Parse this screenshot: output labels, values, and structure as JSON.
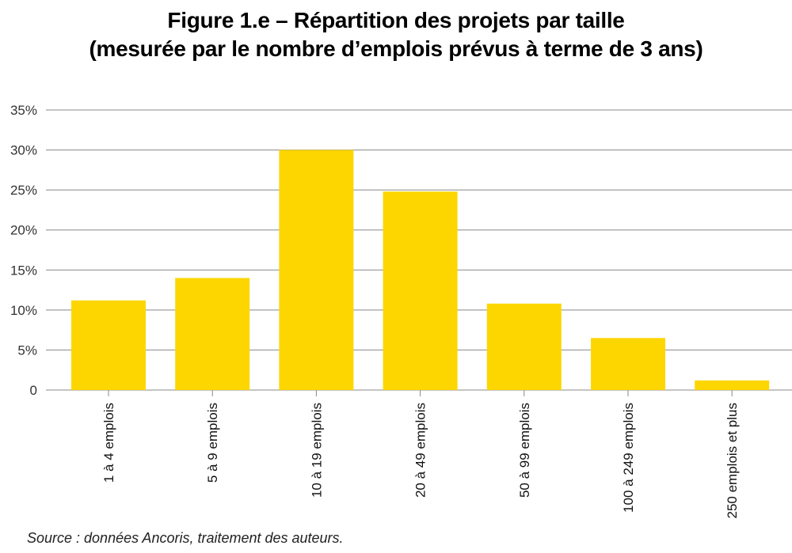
{
  "title_line1": "Figure 1.e – Répartition des projets par taille",
  "title_line2": "(mesurée par le nombre d’emplois prévus à terme de 3 ans)",
  "source": "Source : données Ancoris, traitement des auteurs.",
  "colors": {
    "bar": "#FDD600",
    "grid": "#888888",
    "text": "#333333"
  },
  "chart_data": {
    "type": "bar",
    "title": "Figure 1.e – Répartition des projets par taille (mesurée par le nombre d’emplois prévus à terme de 3 ans)",
    "categories": [
      "1 à 4 emplois",
      "5 à 9 emplois",
      "10 à 19 emplois",
      "20 à 49 emplois",
      "50 à 99 emplois",
      "100 à 249 emplois",
      "250 emplois et plus"
    ],
    "values": [
      11.2,
      14.0,
      30.0,
      24.8,
      10.8,
      6.5,
      1.2
    ],
    "ylim": [
      0,
      35
    ],
    "yticks": [
      0,
      5,
      10,
      15,
      20,
      25,
      30,
      35
    ],
    "ytick_labels": [
      "0",
      "5%",
      "10%",
      "15%",
      "20%",
      "25%",
      "30%",
      "35%"
    ],
    "grid": true,
    "unit": "%"
  }
}
